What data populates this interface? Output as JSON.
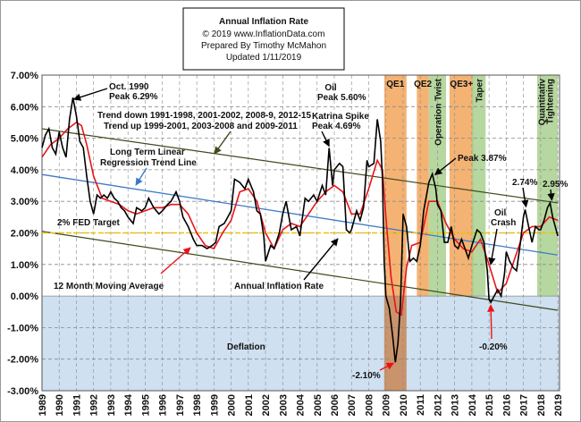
{
  "title_box": {
    "title": "Annual  Inflation Rate",
    "line1": "© 2019  www.InflationData.com",
    "line2": "Prepared  By Timothy McMahon",
    "line3": "Updated   1/11/2019"
  },
  "colors": {
    "background": "#ffffff",
    "grid": "#8a8a8a",
    "inflation_line": "#000000",
    "moving_average": "#e8141a",
    "trend_channel": "#3f4a1e",
    "regression_line": "#3d7ac7",
    "fed_target": "#f2c200",
    "qe_band": "#f2a45a",
    "qe_band_deflation": "#c9936b",
    "green_band": "#a9d08e",
    "deflation_fill": "#cfe0f0",
    "deflation_text": "#3d6fad"
  },
  "chart_data": {
    "type": "line",
    "title": "Annual  Inflation Rate",
    "xlabel": "",
    "ylabel": "",
    "xlim": [
      1989,
      2019.1
    ],
    "ylim": [
      -3.0,
      7.0
    ],
    "grid": true,
    "x_tick_labels": [
      "1989",
      "1990",
      "1991",
      "1992",
      "1993",
      "1994",
      "1995",
      "1996",
      "1997",
      "1998",
      "1999",
      "2000",
      "2001",
      "2002",
      "2003",
      "2004",
      "2005",
      "2006",
      "2007",
      "2008",
      "2009",
      "2010",
      "2011",
      "2012",
      "2013",
      "2014",
      "2015",
      "2016",
      "2017",
      "2018",
      "2019"
    ],
    "y_tick_labels": [
      "7.00%",
      "6.00%",
      "5.00%",
      "4.00%",
      "3.00%",
      "2.00%",
      "1.00%",
      "0.00%",
      "-1.00%",
      "-2.00%",
      "-3.00%"
    ],
    "series": [
      {
        "name": "Annual Inflation Rate",
        "points": [
          [
            1989.0,
            4.7
          ],
          [
            1989.2,
            5.1
          ],
          [
            1989.4,
            5.3
          ],
          [
            1989.6,
            4.7
          ],
          [
            1989.8,
            4.5
          ],
          [
            1990.0,
            5.2
          ],
          [
            1990.2,
            4.7
          ],
          [
            1990.4,
            4.4
          ],
          [
            1990.6,
            5.6
          ],
          [
            1990.8,
            6.29
          ],
          [
            1991.0,
            5.7
          ],
          [
            1991.2,
            4.9
          ],
          [
            1991.4,
            4.7
          ],
          [
            1991.6,
            3.8
          ],
          [
            1991.8,
            3.0
          ],
          [
            1992.0,
            2.6
          ],
          [
            1992.2,
            3.2
          ],
          [
            1992.4,
            3.1
          ],
          [
            1992.6,
            3.2
          ],
          [
            1992.8,
            3.1
          ],
          [
            1993.0,
            3.3
          ],
          [
            1993.2,
            3.1
          ],
          [
            1993.4,
            3.0
          ],
          [
            1993.6,
            2.8
          ],
          [
            1993.8,
            2.7
          ],
          [
            1994.0,
            2.5
          ],
          [
            1994.3,
            2.3
          ],
          [
            1994.5,
            2.8
          ],
          [
            1994.8,
            2.7
          ],
          [
            1995.0,
            2.8
          ],
          [
            1995.2,
            3.1
          ],
          [
            1995.5,
            2.8
          ],
          [
            1995.8,
            2.6
          ],
          [
            1996.0,
            2.7
          ],
          [
            1996.3,
            2.9
          ],
          [
            1996.5,
            3.0
          ],
          [
            1996.8,
            3.3
          ],
          [
            1997.0,
            3.0
          ],
          [
            1997.2,
            2.5
          ],
          [
            1997.5,
            2.2
          ],
          [
            1997.8,
            1.8
          ],
          [
            1998.0,
            1.6
          ],
          [
            1998.3,
            1.6
          ],
          [
            1998.6,
            1.5
          ],
          [
            1998.9,
            1.6
          ],
          [
            1999.1,
            1.7
          ],
          [
            1999.3,
            2.2
          ],
          [
            1999.6,
            2.3
          ],
          [
            1999.9,
            2.6
          ],
          [
            2000.0,
            2.7
          ],
          [
            2000.2,
            3.7
          ],
          [
            2000.5,
            3.6
          ],
          [
            2000.8,
            3.4
          ],
          [
            2001.0,
            3.7
          ],
          [
            2001.3,
            3.3
          ],
          [
            2001.5,
            2.7
          ],
          [
            2001.7,
            2.6
          ],
          [
            2001.9,
            1.9
          ],
          [
            2002.0,
            1.1
          ],
          [
            2002.3,
            1.6
          ],
          [
            2002.5,
            1.5
          ],
          [
            2002.8,
            2.0
          ],
          [
            2003.0,
            2.6
          ],
          [
            2003.2,
            3.0
          ],
          [
            2003.5,
            2.1
          ],
          [
            2003.8,
            2.2
          ],
          [
            2004.0,
            1.9
          ],
          [
            2004.3,
            3.1
          ],
          [
            2004.5,
            3.0
          ],
          [
            2004.8,
            3.2
          ],
          [
            2005.0,
            3.0
          ],
          [
            2005.3,
            3.5
          ],
          [
            2005.5,
            3.2
          ],
          [
            2005.7,
            4.69
          ],
          [
            2005.9,
            3.5
          ],
          [
            2006.0,
            4.0
          ],
          [
            2006.3,
            4.2
          ],
          [
            2006.5,
            4.1
          ],
          [
            2006.7,
            2.1
          ],
          [
            2006.9,
            2.0
          ],
          [
            2007.0,
            2.1
          ],
          [
            2007.3,
            2.7
          ],
          [
            2007.5,
            2.4
          ],
          [
            2007.7,
            2.8
          ],
          [
            2007.9,
            4.3
          ],
          [
            2008.0,
            4.1
          ],
          [
            2008.3,
            4.2
          ],
          [
            2008.5,
            5.6
          ],
          [
            2008.7,
            4.9
          ],
          [
            2008.8,
            3.7
          ],
          [
            2008.9,
            1.1
          ],
          [
            2009.0,
            0.0
          ],
          [
            2009.2,
            -0.4
          ],
          [
            2009.4,
            -1.3
          ],
          [
            2009.55,
            -2.1
          ],
          [
            2009.7,
            -1.5
          ],
          [
            2009.85,
            -0.2
          ],
          [
            2010.0,
            2.6
          ],
          [
            2010.2,
            2.2
          ],
          [
            2010.4,
            1.1
          ],
          [
            2010.6,
            1.2
          ],
          [
            2010.8,
            1.1
          ],
          [
            2011.0,
            1.6
          ],
          [
            2011.2,
            2.7
          ],
          [
            2011.5,
            3.6
          ],
          [
            2011.7,
            3.87
          ],
          [
            2011.9,
            3.4
          ],
          [
            2012.0,
            2.9
          ],
          [
            2012.2,
            2.7
          ],
          [
            2012.4,
            1.7
          ],
          [
            2012.6,
            1.7
          ],
          [
            2012.8,
            2.2
          ],
          [
            2013.0,
            1.6
          ],
          [
            2013.2,
            1.5
          ],
          [
            2013.4,
            1.8
          ],
          [
            2013.6,
            1.5
          ],
          [
            2013.8,
            1.2
          ],
          [
            2014.0,
            1.6
          ],
          [
            2014.3,
            2.1
          ],
          [
            2014.5,
            2.0
          ],
          [
            2014.7,
            1.7
          ],
          [
            2014.9,
            0.8
          ],
          [
            2015.0,
            -0.1
          ],
          [
            2015.1,
            -0.2
          ],
          [
            2015.3,
            0.0
          ],
          [
            2015.5,
            0.2
          ],
          [
            2015.7,
            0.0
          ],
          [
            2015.9,
            0.7
          ],
          [
            2016.0,
            1.4
          ],
          [
            2016.2,
            1.1
          ],
          [
            2016.4,
            0.9
          ],
          [
            2016.6,
            0.8
          ],
          [
            2016.8,
            1.6
          ],
          [
            2017.0,
            2.5
          ],
          [
            2017.1,
            2.74
          ],
          [
            2017.3,
            2.2
          ],
          [
            2017.5,
            1.7
          ],
          [
            2017.7,
            2.2
          ],
          [
            2017.9,
            2.1
          ],
          [
            2018.0,
            2.1
          ],
          [
            2018.2,
            2.4
          ],
          [
            2018.4,
            2.8
          ],
          [
            2018.55,
            2.95
          ],
          [
            2018.7,
            2.5
          ],
          [
            2018.85,
            2.2
          ],
          [
            2019.0,
            1.9
          ]
        ]
      },
      {
        "name": "12 Month Moving Average",
        "points": [
          [
            1989.0,
            4.4
          ],
          [
            1989.5,
            4.8
          ],
          [
            1990.0,
            5.0
          ],
          [
            1990.5,
            5.3
          ],
          [
            1991.0,
            5.5
          ],
          [
            1991.3,
            5.4
          ],
          [
            1991.6,
            4.8
          ],
          [
            1992.0,
            3.8
          ],
          [
            1992.5,
            3.1
          ],
          [
            1993.0,
            3.0
          ],
          [
            1993.5,
            2.9
          ],
          [
            1994.0,
            2.7
          ],
          [
            1994.5,
            2.6
          ],
          [
            1995.0,
            2.7
          ],
          [
            1995.5,
            2.8
          ],
          [
            1996.0,
            2.8
          ],
          [
            1996.5,
            2.9
          ],
          [
            1997.0,
            2.9
          ],
          [
            1997.5,
            2.6
          ],
          [
            1998.0,
            2.0
          ],
          [
            1998.5,
            1.6
          ],
          [
            1999.0,
            1.5
          ],
          [
            1999.5,
            2.0
          ],
          [
            2000.0,
            2.4
          ],
          [
            2000.5,
            3.3
          ],
          [
            2001.0,
            3.4
          ],
          [
            2001.5,
            3.0
          ],
          [
            2002.0,
            2.0
          ],
          [
            2002.5,
            1.5
          ],
          [
            2003.0,
            2.1
          ],
          [
            2003.5,
            2.3
          ],
          [
            2004.0,
            2.2
          ],
          [
            2004.5,
            2.6
          ],
          [
            2005.0,
            3.0
          ],
          [
            2005.5,
            3.3
          ],
          [
            2006.0,
            3.5
          ],
          [
            2006.5,
            3.3
          ],
          [
            2007.0,
            2.6
          ],
          [
            2007.5,
            2.6
          ],
          [
            2008.0,
            3.4
          ],
          [
            2008.5,
            4.3
          ],
          [
            2008.8,
            4.0
          ],
          [
            2009.0,
            2.5
          ],
          [
            2009.3,
            0.6
          ],
          [
            2009.6,
            -0.5
          ],
          [
            2009.9,
            -0.6
          ],
          [
            2010.2,
            0.9
          ],
          [
            2010.5,
            1.6
          ],
          [
            2011.0,
            1.7
          ],
          [
            2011.5,
            3.0
          ],
          [
            2012.0,
            3.0
          ],
          [
            2012.5,
            2.3
          ],
          [
            2013.0,
            1.8
          ],
          [
            2013.5,
            1.5
          ],
          [
            2014.0,
            1.4
          ],
          [
            2014.5,
            1.8
          ],
          [
            2015.0,
            1.0
          ],
          [
            2015.5,
            0.1
          ],
          [
            2016.0,
            0.4
          ],
          [
            2016.5,
            1.2
          ],
          [
            2017.0,
            2.0
          ],
          [
            2017.5,
            2.2
          ],
          [
            2018.0,
            2.2
          ],
          [
            2018.5,
            2.5
          ],
          [
            2019.0,
            2.4
          ]
        ]
      }
    ],
    "trend_lines": [
      {
        "label": "Trend channel upper",
        "x": [
          1989,
          2019
        ],
        "y": [
          5.3,
          2.95
        ]
      },
      {
        "label": "Trend channel lower",
        "x": [
          1989,
          2019
        ],
        "y": [
          2.05,
          -0.45
        ]
      },
      {
        "label": "Long Term Linear Regression Trend Line",
        "x": [
          1989,
          2019
        ],
        "y": [
          3.85,
          1.3
        ]
      },
      {
        "label": "2% FED Target",
        "x": [
          1989,
          2019
        ],
        "y": [
          2.0,
          2.0
        ]
      }
    ],
    "bands": [
      {
        "label": "QE1",
        "x": [
          2008.9,
          2010.2
        ],
        "kind": "qe"
      },
      {
        "label": "QE2",
        "x": [
          2010.8,
          2011.5
        ],
        "kind": "qe"
      },
      {
        "label": "Operation Twist",
        "x": [
          2011.5,
          2012.5
        ],
        "kind": "green"
      },
      {
        "label": "QE3+",
        "x": [
          2012.7,
          2014.1
        ],
        "kind": "qe"
      },
      {
        "label": "Taper",
        "x": [
          2014.0,
          2014.8
        ],
        "kind": "green"
      },
      {
        "label": "Quantitativ Tightening",
        "x": [
          2017.8,
          2019.0
        ],
        "kind": "green"
      }
    ],
    "annotations": [
      {
        "lines": [
          "Oct. 1990",
          "Peak 6.29%"
        ]
      },
      {
        "lines": [
          "Trend  down 1991-1998,  2001-2002,  2008-9,  2012-15",
          "Trend  up 1999-2001,  2003-2008  and 2009-2011"
        ]
      },
      {
        "lines": [
          "Long Term Linear",
          "Regression Trend Line"
        ]
      },
      {
        "lines": [
          "2% FED Target"
        ]
      },
      {
        "lines": [
          "12 Month Moving Average"
        ]
      },
      {
        "lines": [
          "Annual Inflation Rate"
        ]
      },
      {
        "lines": [
          "Katrina Spike",
          "Peak 4.69%"
        ]
      },
      {
        "lines": [
          "Oil",
          "Peak 5.60%"
        ]
      },
      {
        "lines": [
          "Peak 3.87%"
        ]
      },
      {
        "lines": [
          "2.74%"
        ]
      },
      {
        "lines": [
          "2.95%"
        ]
      },
      {
        "lines": [
          "Oil",
          "Crash"
        ]
      },
      {
        "lines": [
          "-2.10%"
        ]
      },
      {
        "lines": [
          "-0.20%"
        ]
      },
      {
        "lines": [
          "Deflation"
        ]
      }
    ]
  }
}
